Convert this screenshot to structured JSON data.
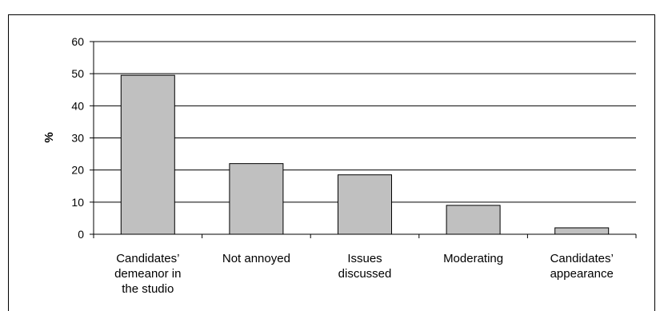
{
  "chart_data": {
    "type": "bar",
    "categories": [
      [
        "Candidates’",
        "demeanor in",
        "the studio"
      ],
      [
        "Not annoyed"
      ],
      [
        "Issues",
        "discussed"
      ],
      [
        "Moderating"
      ],
      [
        "Candidates’",
        "appearance"
      ]
    ],
    "values": [
      49.5,
      22,
      18.5,
      9,
      2
    ],
    "ylabel": "%",
    "ylim": [
      0,
      60
    ],
    "yticks": [
      "0",
      "10",
      "20",
      "30",
      "40",
      "50",
      "60"
    ],
    "grid": true,
    "bar_color": "#c0c0c0",
    "bar_stroke": "#000000",
    "grid_color": "#000000"
  }
}
